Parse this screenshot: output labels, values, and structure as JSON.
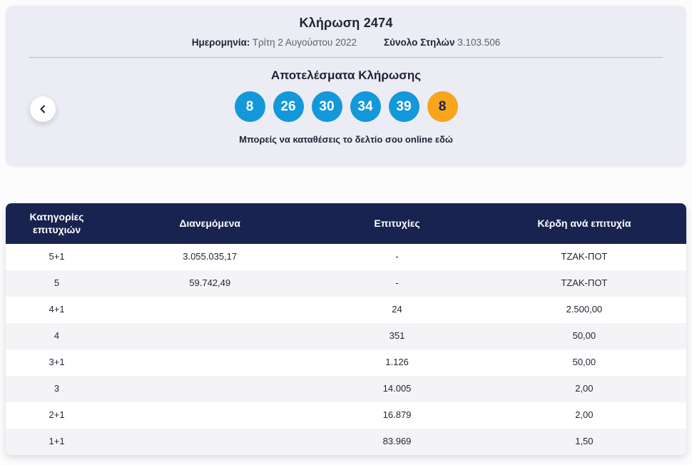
{
  "draw_card": {
    "title": "Κλήρωση 2474",
    "date_label": "Ημερομηνία:",
    "date_value": "Τρίτη 2 Αυγούστου 2022",
    "columns_label": "Σύνολο Στηλών",
    "columns_value": "3.103.506",
    "results_title": "Αποτελέσματα Κλήρωσης",
    "numbers": [
      {
        "value": "8",
        "type": "main"
      },
      {
        "value": "26",
        "type": "main"
      },
      {
        "value": "30",
        "type": "main"
      },
      {
        "value": "34",
        "type": "main"
      },
      {
        "value": "39",
        "type": "main"
      },
      {
        "value": "8",
        "type": "joker"
      }
    ],
    "cta_text": "Μπορείς να καταθέσεις το δελτίο σου online",
    "cta_link": "εδώ"
  },
  "table": {
    "headers": [
      "Κατηγορίες επιτυχιών",
      "Διανεμόμενα",
      "Επιτυχίες",
      "Κέρδη ανά επιτυχία"
    ],
    "rows": [
      [
        "5+1",
        "3.055.035,17",
        "-",
        "ΤΖΑΚ-ΠΟΤ"
      ],
      [
        "5",
        "59.742,49",
        "-",
        "ΤΖΑΚ-ΠΟΤ"
      ],
      [
        "4+1",
        "",
        "24",
        "2.500,00"
      ],
      [
        "4",
        "",
        "351",
        "50,00"
      ],
      [
        "3+1",
        "",
        "1.126",
        "50,00"
      ],
      [
        "3",
        "",
        "14.005",
        "2,00"
      ],
      [
        "2+1",
        "",
        "16.879",
        "2,00"
      ],
      [
        "1+1",
        "",
        "83.969",
        "1,50"
      ]
    ]
  },
  "colors": {
    "navy": "#192350",
    "ball_blue": "#1398da",
    "ball_joker": "#f8a41c",
    "card_bg": "#ebecf4",
    "row_alt": "#f4f4f6"
  }
}
